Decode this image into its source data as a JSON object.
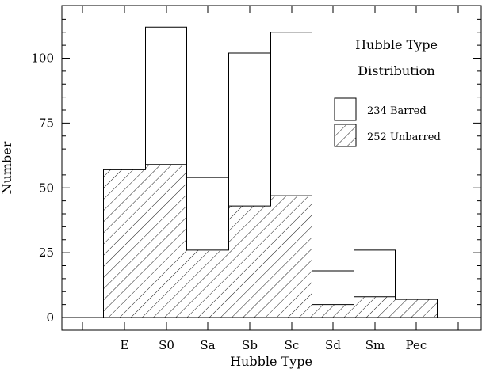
{
  "chart_data": {
    "type": "bar",
    "title": "Hubble Type",
    "subtitle": "Distribution",
    "xlabel": "Hubble Type",
    "ylabel": "Number",
    "categories": [
      "E",
      "S0",
      "Sa",
      "Sb",
      "Sc",
      "Sd",
      "Sm",
      "Pec"
    ],
    "ylim": [
      -5,
      120
    ],
    "yticks": [
      0,
      25,
      50,
      75,
      100
    ],
    "yticks_labels": [
      "0",
      "25",
      "50",
      "75",
      "100"
    ],
    "grid": false,
    "legend_position": "top-right",
    "series": [
      {
        "name": "234 Barred",
        "fill": "none",
        "values": [
          0,
          112,
          54,
          102,
          110,
          18,
          26,
          0
        ]
      },
      {
        "name": "252 Unbarred",
        "fill": "hatched",
        "values": [
          57,
          59,
          26,
          43,
          47,
          5,
          8,
          7
        ]
      }
    ],
    "substeps": {
      "Sb_unbarred_right": 43,
      "Sb_barred_right": 102,
      "Sc_unbarred_left": 47,
      "Sd_unbarred_right": 5
    }
  }
}
